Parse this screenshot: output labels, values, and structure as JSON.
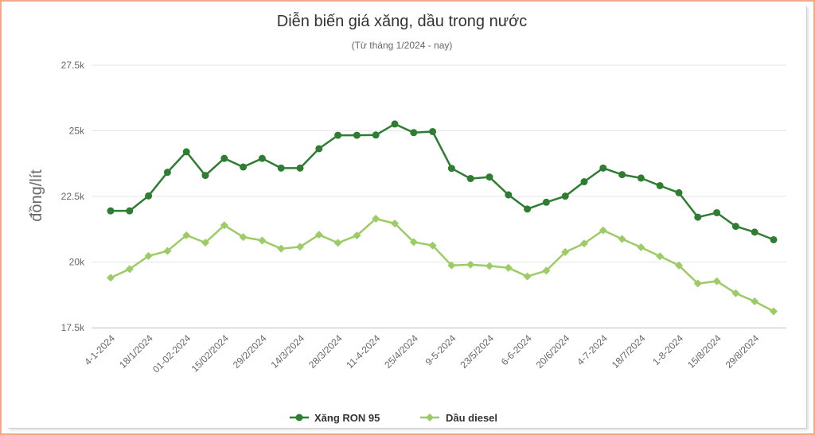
{
  "chart_data": {
    "type": "line",
    "title": "Diễn biến giá xăng, dầu trong nước",
    "subtitle": "(Từ tháng 1/2024 - nay)",
    "ylabel": "đồng/lít",
    "xlabel": "",
    "ylim": [
      17500,
      27500
    ],
    "yticks": [
      17500,
      20000,
      22500,
      25000,
      27500
    ],
    "ytick_labels": [
      "17.5k",
      "20k",
      "22.5k",
      "25k",
      "27.5k"
    ],
    "x_tick_labels": [
      "4-1-2024",
      "18/1/2024",
      "01-02-2024",
      "15/02/2024",
      "29/2/2024",
      "14/3/2024",
      "28/3/2024",
      "11-4-2024",
      "25/4/2024",
      "9-5-2024",
      "23/5/2024",
      "6-6-2024",
      "20/6/2024",
      "4-7-2024",
      "18/7/2024",
      "1-8-2024",
      "15/8/2024",
      "29/8/2024"
    ],
    "grid": true,
    "legend_position": "bottom",
    "series": [
      {
        "name": "Xăng RON 95",
        "color": "#2e7d32",
        "marker": "circle",
        "values": [
          21950,
          21950,
          22520,
          23420,
          24200,
          23300,
          23950,
          23620,
          23950,
          23580,
          23580,
          24320,
          24830,
          24830,
          24840,
          25260,
          24930,
          24970,
          23570,
          23180,
          23240,
          22560,
          22020,
          22280,
          22510,
          23060,
          23580,
          23330,
          23200,
          22910,
          22640,
          21710,
          21880,
          21360,
          21140,
          20850
        ]
      },
      {
        "name": "Dầu diesel",
        "color": "#9ccc65",
        "marker": "diamond",
        "values": [
          19400,
          19730,
          20230,
          20420,
          21020,
          20740,
          21400,
          20950,
          20820,
          20510,
          20580,
          21040,
          20730,
          21010,
          21650,
          21470,
          20760,
          20630,
          19870,
          19900,
          19850,
          19780,
          19450,
          19670,
          20380,
          20710,
          21210,
          20880,
          20560,
          20220,
          19870,
          19180,
          19270,
          18810,
          18500,
          18120
        ]
      }
    ]
  }
}
